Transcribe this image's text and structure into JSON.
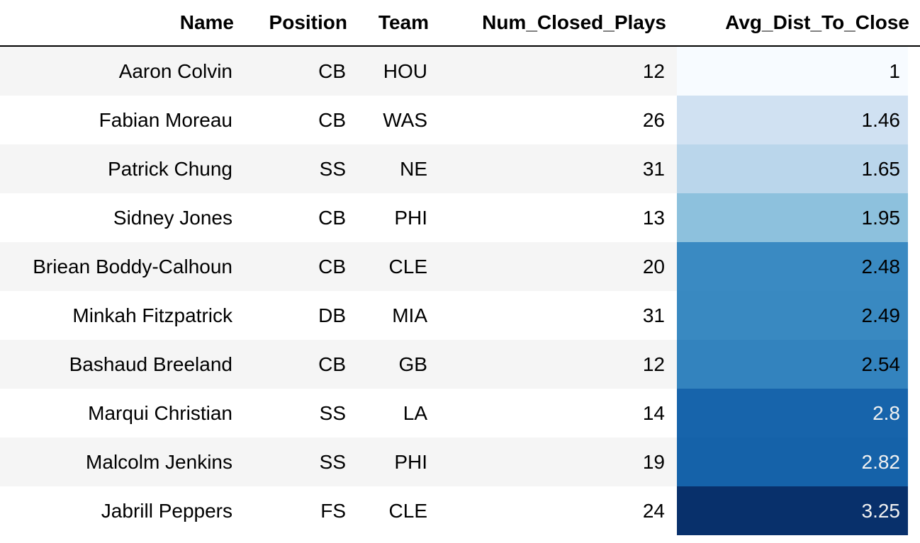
{
  "table": {
    "columns": [
      "Name",
      "Position",
      "Team",
      "Num_Closed_Plays",
      "Avg_Dist_To_Close"
    ],
    "rows": [
      {
        "name": "Aaron Colvin",
        "position": "CB",
        "team": "HOU",
        "num_closed_plays": "12",
        "avg_dist_to_close": "1",
        "bg": "#f7fbff",
        "fg": "#000000"
      },
      {
        "name": "Fabian Moreau",
        "position": "CB",
        "team": "WAS",
        "num_closed_plays": "26",
        "avg_dist_to_close": "1.46",
        "bg": "#d0e1f2",
        "fg": "#000000"
      },
      {
        "name": "Patrick Chung",
        "position": "SS",
        "team": "NE",
        "num_closed_plays": "31",
        "avg_dist_to_close": "1.65",
        "bg": "#bad6eb",
        "fg": "#000000"
      },
      {
        "name": "Sidney Jones",
        "position": "CB",
        "team": "PHI",
        "num_closed_plays": "13",
        "avg_dist_to_close": "1.95",
        "bg": "#8dc1dd",
        "fg": "#000000"
      },
      {
        "name": "Briean Boddy-Calhoun",
        "position": "CB",
        "team": "CLE",
        "num_closed_plays": "20",
        "avg_dist_to_close": "2.48",
        "bg": "#3a8ac2",
        "fg": "#000000"
      },
      {
        "name": "Minkah Fitzpatrick",
        "position": "DB",
        "team": "MIA",
        "num_closed_plays": "31",
        "avg_dist_to_close": "2.49",
        "bg": "#3989c1",
        "fg": "#000000"
      },
      {
        "name": "Bashaud Breeland",
        "position": "CB",
        "team": "GB",
        "num_closed_plays": "12",
        "avg_dist_to_close": "2.54",
        "bg": "#3383be",
        "fg": "#000000"
      },
      {
        "name": "Marqui Christian",
        "position": "SS",
        "team": "LA",
        "num_closed_plays": "14",
        "avg_dist_to_close": "2.8",
        "bg": "#1764ab",
        "fg": "#f1f1f1"
      },
      {
        "name": "Malcolm Jenkins",
        "position": "SS",
        "team": "PHI",
        "num_closed_plays": "19",
        "avg_dist_to_close": "2.82",
        "bg": "#1562a9",
        "fg": "#f1f1f1"
      },
      {
        "name": "Jabrill Peppers",
        "position": "FS",
        "team": "CLE",
        "num_closed_plays": "24",
        "avg_dist_to_close": "3.25",
        "bg": "#08306b",
        "fg": "#f1f1f1"
      }
    ]
  }
}
